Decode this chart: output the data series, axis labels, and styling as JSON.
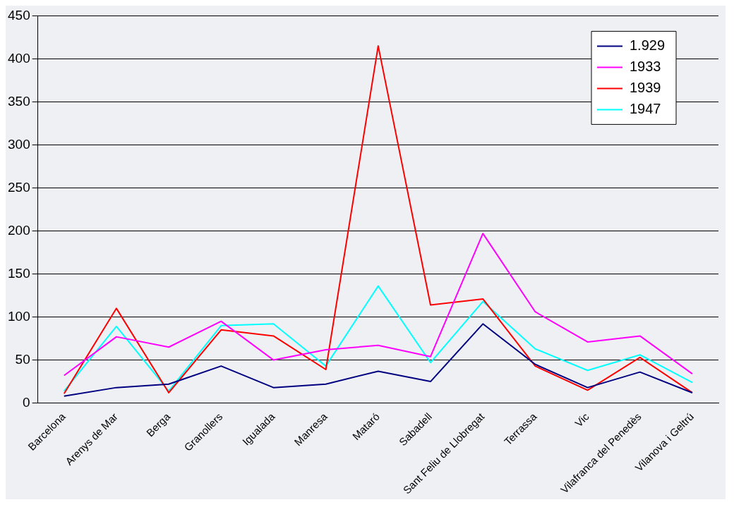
{
  "chart_data": {
    "type": "line",
    "categories": [
      "Barcelona",
      "Arenys de Mar",
      "Berga",
      "Granollers",
      "Igualada",
      "Manresa",
      "Mataró",
      "Sabadell",
      "Sant Feliu de Llobregat",
      "Terrassa",
      "Vic",
      "Vilafranca del Penedès",
      "Vilanova i Geltrú"
    ],
    "series": [
      {
        "name": "1.929",
        "color": "#000080",
        "values": [
          8,
          18,
          22,
          43,
          18,
          22,
          37,
          25,
          92,
          45,
          18,
          36,
          12
        ]
      },
      {
        "name": "1933",
        "color": "#ff00ff",
        "values": [
          32,
          77,
          65,
          95,
          50,
          62,
          67,
          54,
          197,
          106,
          71,
          78,
          34
        ]
      },
      {
        "name": "1939",
        "color": "#ff0000",
        "values": [
          11,
          110,
          12,
          85,
          78,
          39,
          415,
          114,
          121,
          43,
          15,
          53,
          12
        ]
      },
      {
        "name": "1947",
        "color": "#00ffff",
        "values": [
          14,
          89,
          14,
          90,
          92,
          43,
          136,
          47,
          118,
          63,
          38,
          56,
          24
        ]
      }
    ],
    "ylim": [
      0,
      450
    ],
    "yticks": [
      0,
      50,
      100,
      150,
      200,
      250,
      300,
      350,
      400,
      450
    ],
    "grid": "y",
    "legend": "top right",
    "marker": "none",
    "line_style": "solid"
  }
}
